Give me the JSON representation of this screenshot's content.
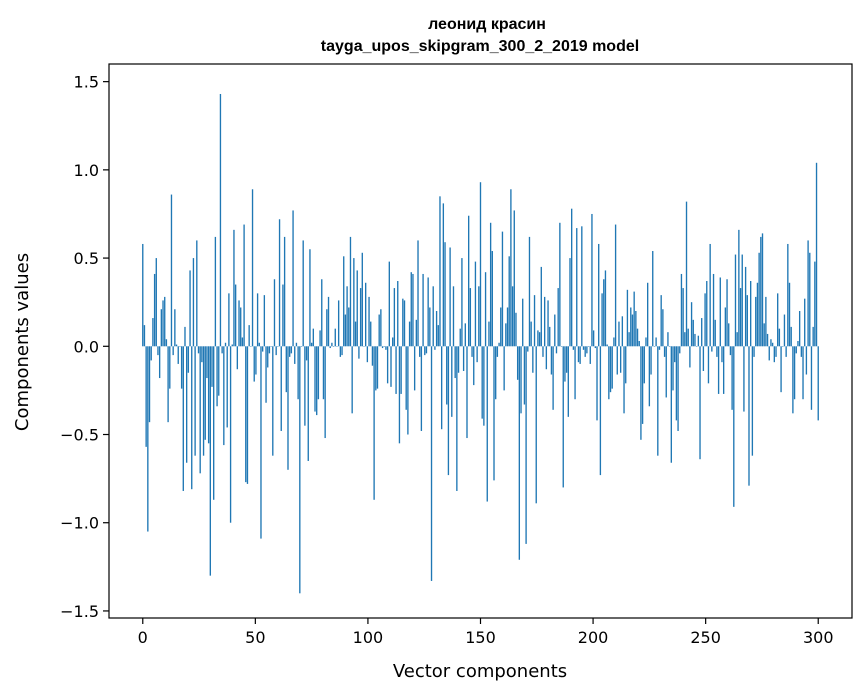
{
  "chart_data": {
    "type": "bar",
    "title_lines": [
      "леонид красин",
      "tayga_upos_skipgram_300_2_2019 model"
    ],
    "xlabel": "Vector components",
    "ylabel": "Components values",
    "xlim": [
      -15,
      315
    ],
    "ylim": [
      -1.54,
      1.6
    ],
    "xticks": [
      0,
      50,
      100,
      150,
      200,
      250,
      300
    ],
    "yticks": [
      -1.5,
      -1.0,
      -0.5,
      0.0,
      0.5,
      1.0,
      1.5
    ],
    "ytick_labels": [
      "−1.5",
      "−1.0",
      "−0.5",
      "0.0",
      "0.5",
      "1.0",
      "1.5"
    ],
    "color": "#1f77b4",
    "grid": false,
    "legend": "none",
    "values": [
      0.58,
      0.12,
      -0.57,
      -1.05,
      -0.43,
      -0.08,
      0.16,
      0.41,
      0.5,
      -0.05,
      -0.18,
      0.21,
      0.26,
      0.28,
      0.04,
      -0.43,
      -0.24,
      0.86,
      -0.05,
      0.21,
      0.01,
      -0.1,
      0.0,
      -0.24,
      -0.82,
      0.11,
      -0.66,
      -0.15,
      0.43,
      -0.81,
      0.5,
      -0.62,
      0.6,
      -0.04,
      -0.72,
      -0.09,
      -0.62,
      -0.53,
      -0.18,
      -0.55,
      -1.3,
      -0.23,
      -0.87,
      0.62,
      -0.34,
      -0.28,
      1.43,
      -0.04,
      -0.56,
      0.02,
      -0.46,
      0.3,
      -1.0,
      0.01,
      0.66,
      0.35,
      -0.13,
      0.26,
      0.22,
      0.05,
      0.69,
      -0.77,
      -0.78,
      0.12,
      0.0,
      0.89,
      -0.2,
      -0.16,
      0.3,
      0.02,
      -1.09,
      -0.03,
      0.29,
      -0.32,
      -0.12,
      -0.04,
      0.0,
      -0.62,
      0.38,
      -0.05,
      0.0,
      0.72,
      -0.48,
      0.35,
      0.62,
      -0.26,
      -0.7,
      -0.06,
      -0.04,
      0.77,
      -0.1,
      0.02,
      -0.3,
      -1.4,
      0.0,
      0.6,
      -0.45,
      -0.08,
      -0.65,
      0.55,
      0.02,
      0.1,
      -0.37,
      -0.39,
      -0.3,
      0.09,
      0.38,
      -0.3,
      -0.52,
      0.21,
      0.28,
      -0.01,
      0.02,
      0.0,
      0.1,
      0.0,
      0.26,
      -0.06,
      -0.05,
      0.51,
      0.18,
      0.34,
      0.22,
      0.62,
      -0.38,
      0.5,
      0.14,
      0.43,
      -0.07,
      0.33,
      0.53,
      0.0,
      0.36,
      -0.09,
      0.28,
      0.14,
      -0.11,
      -0.87,
      -0.25,
      -0.24,
      0.18,
      0.21,
      -0.01,
      0.0,
      -0.02,
      -0.21,
      0.48,
      -0.23,
      0.05,
      0.33,
      -0.27,
      0.37,
      -0.55,
      -0.27,
      0.27,
      0.26,
      -0.36,
      -0.5,
      0.14,
      0.42,
      0.41,
      -0.25,
      0.15,
      0.6,
      -0.06,
      -0.48,
      0.41,
      -0.05,
      -0.04,
      0.39,
      0.22,
      -1.33,
      0.34,
      -0.02,
      0.2,
      0.12,
      0.85,
      -0.47,
      0.81,
      0.59,
      -0.33,
      -0.73,
      0.56,
      -0.4,
      0.34,
      -0.18,
      -0.82,
      -0.15,
      0.1,
      0.5,
      -0.14,
      0.13,
      -0.52,
      0.74,
      0.33,
      -0.06,
      -0.22,
      0.48,
      -0.09,
      0.34,
      0.93,
      -0.41,
      -0.45,
      0.42,
      -0.88,
      0.14,
      0.7,
      0.54,
      -0.76,
      -0.3,
      -0.06,
      0.02,
      0.22,
      0.65,
      -0.25,
      0.13,
      0.22,
      0.51,
      0.89,
      0.34,
      0.77,
      0.19,
      -0.19,
      -1.21,
      -0.38,
      0.27,
      -0.33,
      -1.12,
      -0.03,
      0.62,
      0.14,
      -0.15,
      0.29,
      -0.89,
      0.09,
      0.08,
      0.45,
      -0.06,
      0.28,
      -0.13,
      0.26,
      0.11,
      -0.16,
      -0.36,
      0.18,
      -0.04,
      0.33,
      0.7,
      0.0,
      -0.8,
      -0.2,
      -0.15,
      -0.4,
      0.5,
      0.78,
      -0.02,
      -0.3,
      0.67,
      -0.09,
      -0.1,
      0.68,
      -0.02,
      -0.06,
      -0.04,
      0.0,
      -0.1,
      0.75,
      0.09,
      -0.01,
      -0.42,
      0.58,
      -0.73,
      0.3,
      0.38,
      0.43,
      0.01,
      -0.3,
      -0.26,
      -0.24,
      0.05,
      0.69,
      -0.16,
      0.14,
      -0.15,
      0.17,
      -0.38,
      -0.21,
      0.32,
      0.08,
      0.22,
      0.18,
      0.31,
      0.2,
      0.1,
      0.03,
      -0.53,
      -0.44,
      -0.21,
      0.05,
      0.36,
      -0.34,
      -0.16,
      0.54,
      0.0,
      0.05,
      -0.62,
      -0.02,
      0.29,
      0.21,
      -0.06,
      -0.29,
      0.08,
      0.0,
      -0.66,
      -0.25,
      -0.09,
      -0.42,
      -0.48,
      -0.04,
      0.41,
      0.33,
      0.08,
      0.82,
      0.1,
      -0.12,
      0.25,
      0.15,
      0.07,
      0.0,
      0.06,
      -0.64,
      0.16,
      -0.14,
      0.3,
      0.37,
      -0.21,
      0.58,
      -0.03,
      0.41,
      0.15,
      -0.06,
      -0.27,
      0.39,
      -0.09,
      -0.27,
      0.22,
      0.38,
      0.13,
      -0.05,
      -0.36,
      -0.91,
      0.52,
      0.08,
      0.66,
      0.33,
      0.52,
      -0.37,
      0.45,
      0.29,
      -0.79,
      0.37,
      -0.62,
      -0.06,
      0.28,
      0.36,
      0.53,
      0.62,
      0.64,
      0.13,
      0.28,
      0.07,
      -0.08,
      0.04,
      0.02,
      -0.09,
      -0.06,
      0.3,
      0.1,
      -0.26,
      0.0,
      0.18,
      -0.06,
      0.58,
      0.36,
      0.11,
      -0.38,
      -0.3,
      -0.04,
      0.03,
      0.2,
      -0.06,
      -0.3,
      0.27,
      -0.16,
      0.6,
      0.53,
      -0.36,
      0.11,
      0.48,
      1.04,
      -0.42
    ]
  }
}
